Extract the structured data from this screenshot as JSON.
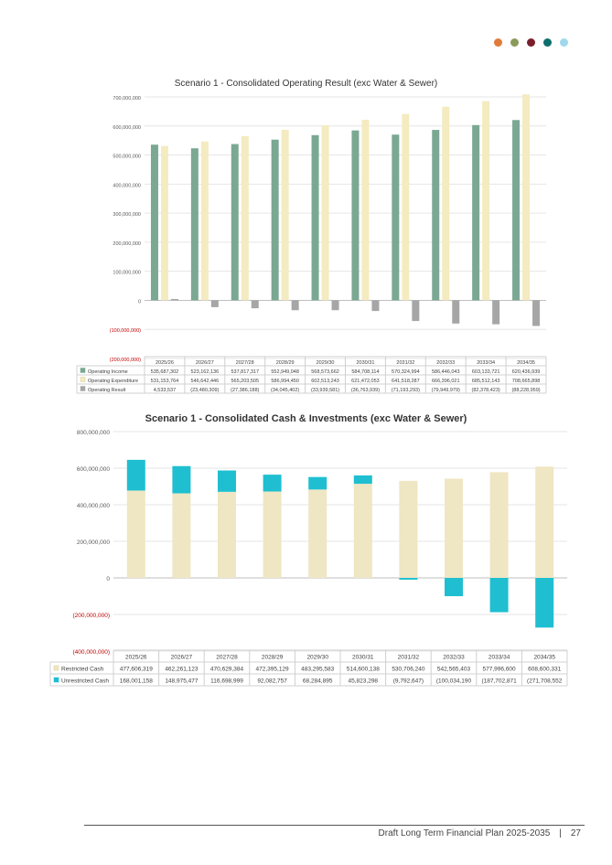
{
  "header": {
    "dot_colors": [
      "#E07B39",
      "#8A9A5B",
      "#7A1F2B",
      "#0E6E6E",
      "#9FD8EC"
    ]
  },
  "footer": {
    "document_title": "Draft Long Term Financial Plan 2025-2035",
    "separator": "|",
    "page_number": "27"
  },
  "chart_data": [
    {
      "type": "bar",
      "title": "Scenario 1 - Consolidated Operating Result (exc Water & Sewer)",
      "categories": [
        "2025/26",
        "2026/27",
        "2027/28",
        "2028/29",
        "2029/30",
        "2030/31",
        "2031/32",
        "2032/33",
        "2033/34",
        "2034/35"
      ],
      "series": [
        {
          "name": "Operating Income",
          "color": "#7BA893",
          "values": [
            535687302,
            523162136,
            537817317,
            552949048,
            568573662,
            584708114,
            570324994,
            586446043,
            603133721,
            620436939
          ],
          "labels": [
            "535,687,302",
            "523,162,136",
            "537,817,317",
            "552,949,048",
            "568,573,662",
            "584,708,114",
            "570,324,994",
            "586,446,043",
            "603,133,721",
            "620,436,939"
          ]
        },
        {
          "name": "Operating Expenditure",
          "color": "#F4EBC1",
          "values": [
            531153764,
            546642446,
            565203505,
            586994450,
            602513243,
            621472053,
            641518287,
            666396021,
            685512143,
            708665898
          ],
          "labels": [
            "531,153,764",
            "546,642,446",
            "565,203,505",
            "586,994,450",
            "602,513,243",
            "621,472,053",
            "641,518,287",
            "666,396,021",
            "685,512,143",
            "708,665,898"
          ]
        },
        {
          "name": "Operating Result",
          "color": "#A6A6A6",
          "values": [
            4533537,
            -23480309,
            -27386188,
            -34045402,
            -33939581,
            -36763939,
            -71193293,
            -79949979,
            -82378423,
            -88228959
          ],
          "labels": [
            "4,533,537",
            "(23,480,309)",
            "(27,386,188)",
            "(34,045,402)",
            "(33,939,581)",
            "(36,763,939)",
            "(71,193,293)",
            "(79,949,979)",
            "(82,378,423)",
            "(88,228,959)"
          ]
        }
      ],
      "y_ticks": [
        700000000,
        600000000,
        500000000,
        400000000,
        300000000,
        200000000,
        100000000,
        0,
        -100000000,
        -200000000
      ],
      "y_tick_labels": [
        "700,000,000",
        "600,000,000",
        "500,000,000",
        "400,000,000",
        "300,000,000",
        "200,000,000",
        "100,000,000",
        "0",
        "(100,000,000)",
        "(200,000,000)"
      ],
      "ylim": [
        -200000000,
        700000000
      ],
      "grid": true,
      "legend": "data-table"
    },
    {
      "type": "bar",
      "stacked": true,
      "title": "Scenario 1 - Consolidated Cash & Investments (exc Water & Sewer)",
      "categories": [
        "2025/26",
        "2026/27",
        "2027/28",
        "2028/29",
        "2029/30",
        "2030/31",
        "2031/32",
        "2032/33",
        "2033/34",
        "2034/35"
      ],
      "series": [
        {
          "name": "Restricted Cash",
          "color": "#EFE6C3",
          "values": [
            477606319,
            462261123,
            470629384,
            472395129,
            483295583,
            514600138,
            530706240,
            542565403,
            577996600,
            608600331
          ],
          "labels": [
            "477,606,319",
            "462,261,123",
            "470,629,384",
            "472,395,129",
            "483,295,583",
            "514,600,138",
            "530,706,240",
            "542,565,403",
            "577,996,600",
            "608,600,331"
          ]
        },
        {
          "name": "Unrestricted Cash",
          "color": "#1FBFD1",
          "values": [
            168001158,
            148975477,
            116698999,
            92082757,
            68284895,
            45823298,
            -9792647,
            -100034190,
            -187702871,
            -271708552
          ],
          "labels": [
            "168,001,158",
            "148,975,477",
            "116,698,999",
            "92,082,757",
            "68,284,895",
            "45,823,298",
            "(9,792,647)",
            "(100,034,190",
            "(187,702,871",
            "(271,708,552"
          ]
        }
      ],
      "y_ticks": [
        800000000,
        600000000,
        400000000,
        200000000,
        0,
        -200000000,
        -400000000
      ],
      "y_tick_labels": [
        "800,000,000",
        "600,000,000",
        "400,000,000",
        "200,000,000",
        "0",
        "(200,000,000)",
        "(400,000,000)"
      ],
      "ylim": [
        -400000000,
        800000000
      ],
      "grid": true,
      "legend": "data-table"
    }
  ]
}
